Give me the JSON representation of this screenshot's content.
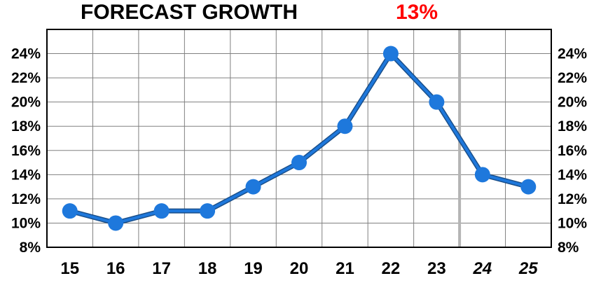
{
  "title": {
    "text": "FORECAST GROWTH",
    "value": "13%",
    "value_color": "#ff0000"
  },
  "chart_data": {
    "type": "line",
    "title": "FORECAST GROWTH",
    "headline_value": "13%",
    "categories": [
      "15",
      "16",
      "17",
      "18",
      "19",
      "20",
      "21",
      "22",
      "23",
      "24",
      "25"
    ],
    "forecast_categories": [
      "24",
      "25"
    ],
    "series": [
      {
        "values": [
          11,
          10,
          11,
          11,
          13,
          15,
          18,
          24,
          20,
          14,
          13
        ],
        "color": "#1e78dc",
        "line_edge_color": "#1a4f8a"
      }
    ],
    "ylim": [
      8,
      24
    ],
    "y_ticks": [
      "8%",
      "10%",
      "12%",
      "14%",
      "16%",
      "18%",
      "20%",
      "22%",
      "24%"
    ],
    "y_tick_values": [
      8,
      10,
      12,
      14,
      16,
      18,
      20,
      22,
      24
    ],
    "y_axis_sides": "left and right",
    "grid": true,
    "xlabel": "",
    "ylabel": ""
  }
}
